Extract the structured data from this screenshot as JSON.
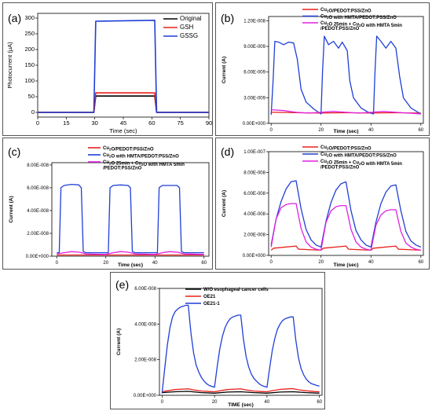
{
  "chart_data": [
    {
      "panel": "(a)",
      "type": "line",
      "xlabel": "Time (sec)",
      "ylabel": "Photocurrent (µA)",
      "xticks": [
        "0",
        "15",
        "30",
        "45",
        "60",
        "75",
        "90"
      ],
      "yticks": [
        "0",
        "50",
        "100",
        "150",
        "200",
        "250",
        "300"
      ],
      "xlim": [
        0,
        90
      ],
      "ylim": [
        -15,
        315
      ],
      "legend": "top-right",
      "series": [
        {
          "name": "Original",
          "color": "#000000",
          "x": [
            0,
            29.5,
            30.5,
            61.5,
            62.5,
            90
          ],
          "y": [
            0,
            0,
            52,
            52,
            0,
            0
          ]
        },
        {
          "name": "GSH",
          "color": "#e8201c",
          "x": [
            0,
            29.5,
            30.5,
            61.5,
            62.5,
            90
          ],
          "y": [
            0,
            0,
            62,
            62,
            0,
            0
          ]
        },
        {
          "name": "GSSG",
          "color": "#1f3fd6",
          "x": [
            0,
            29.5,
            30.5,
            61.5,
            62.5,
            90
          ],
          "y": [
            0,
            0,
            290,
            293,
            0,
            0
          ]
        }
      ]
    },
    {
      "panel": "(b)",
      "type": "line",
      "xlabel": "Time (sec)",
      "ylabel": "Current (A)",
      "xticks": [
        "0",
        "20",
        "40",
        "60"
      ],
      "yticks": [
        "0.00E+000",
        "3.00E-009",
        "6.00E-009",
        "9.00E-009",
        "1.20E-008"
      ],
      "xlim": [
        -1,
        61
      ],
      "ylim": [
        0,
        1.25e-08
      ],
      "legend": "top",
      "series": [
        {
          "name": "Cu₂O/PEDOT:PSS/ZnO",
          "color": "#e8201c",
          "x": [
            0,
            10,
            20,
            30,
            40,
            50,
            60
          ],
          "y": [
            1.3e-09,
            1.25e-09,
            1.2e-09,
            1.25e-09,
            1.2e-09,
            1.25e-09,
            1.2e-09
          ]
        },
        {
          "name": "Cu₂O with HMTA/PEDOT:PSS/ZnO",
          "color": "#1f3fd6",
          "x": [
            0,
            0.8,
            1.5,
            3,
            5,
            7,
            9,
            10.5,
            12,
            14,
            17,
            20,
            20.6,
            21.3,
            23,
            25,
            27,
            28.5,
            30.5,
            31.5,
            33,
            36,
            39,
            41,
            41.6,
            42.3,
            44,
            46,
            48,
            50,
            51.5,
            53,
            56,
            60
          ],
          "y": [
            1e-09,
            5e-09,
            9.6e-09,
            9.5e-09,
            9.2e-09,
            9.5e-09,
            9.4e-09,
            7.5e-09,
            4e-09,
            2.5e-09,
            1.7e-09,
            1.1e-09,
            6e-09,
            1.02e-08,
            9.2e-09,
            9.6e-09,
            8.8e-09,
            9.5e-09,
            8.5e-09,
            5e-09,
            3e-09,
            1.8e-09,
            1.3e-09,
            1.1e-09,
            6e-09,
            1.02e-08,
            9.6e-09,
            8.8e-09,
            9.6e-09,
            8.8e-09,
            5.5e-09,
            3e-09,
            1.8e-09,
            1.1e-09
          ]
        },
        {
          "name": "Cu₂O 25min + Cu₂O with HMTA 5min /PEDOT:PSS/ZnO",
          "color": "#e020e0",
          "x": [
            0,
            5,
            10,
            15,
            20,
            25,
            30,
            35,
            40,
            45,
            50,
            55,
            60
          ],
          "y": [
            1.6e-09,
            1.5e-09,
            1.3e-09,
            1.2e-09,
            1.3e-09,
            1.4e-09,
            1.3e-09,
            1.2e-09,
            1.3e-09,
            1.4e-09,
            1.3e-09,
            1.2e-09,
            1.1e-09
          ]
        }
      ]
    },
    {
      "panel": "(c)",
      "type": "line",
      "xlabel": "Time (sec)",
      "ylabel": "Current (A)",
      "xticks": [
        "0",
        "20",
        "40",
        "60"
      ],
      "yticks": [
        "0.00E+000",
        "2.00E-008",
        "4.00E-008",
        "6.00E-008",
        "8.00E-008"
      ],
      "xlim": [
        -2,
        62
      ],
      "ylim": [
        0,
        8.2e-08
      ],
      "legend": "top",
      "series": [
        {
          "name": "Cu₂O/PEDOT:PSS/ZnO",
          "color": "#e8201c",
          "x": [
            0,
            60
          ],
          "y": [
            1e-09,
            1e-09
          ]
        },
        {
          "name": "Cu₂O with HMTA/PEDOT:PSS/ZnO",
          "color": "#1f3fd6",
          "x": [
            0,
            1,
            1.7,
            3,
            6,
            9,
            10,
            10.8,
            12,
            20,
            21,
            21.7,
            23,
            26,
            29,
            30,
            30.8,
            32,
            40,
            41,
            41.7,
            43,
            46,
            49,
            50,
            50.8,
            52,
            60
          ],
          "y": [
            3e-09,
            3e-09,
            6e-08,
            6.2e-08,
            6.3e-08,
            6.25e-08,
            6e-08,
            4e-09,
            3e-09,
            3e-09,
            3e-09,
            6e-08,
            6.2e-08,
            6.25e-08,
            6.2e-08,
            6e-08,
            4e-09,
            3e-09,
            3e-09,
            3e-09,
            6e-08,
            6.2e-08,
            6.2e-08,
            6.2e-08,
            6e-08,
            4e-09,
            3e-09,
            3e-09
          ]
        },
        {
          "name": "Cu₂O 25min + Cu₂O with HMTA 5min /PEDOT:PSS/ZnO",
          "color": "#e020e0",
          "x": [
            0,
            3,
            6,
            9,
            12,
            20,
            23,
            26,
            29,
            32,
            40,
            43,
            46,
            49,
            52,
            60
          ],
          "y": [
            2e-09,
            3e-09,
            4e-09,
            3.5e-09,
            2e-09,
            1.5e-09,
            3e-09,
            4e-09,
            3.5e-09,
            2e-09,
            1.5e-09,
            3e-09,
            4e-09,
            3.5e-09,
            2e-09,
            1.5e-09
          ]
        }
      ]
    },
    {
      "panel": "(d)",
      "type": "line",
      "xlabel": "Time (sec)",
      "ylabel": "Current (A)",
      "xticks": [
        "0",
        "20",
        "40",
        "60"
      ],
      "yticks": [
        "0.00E+000",
        "2.00E-008",
        "4.00E-008",
        "6.00E-008",
        "8.00E-008",
        "1.00E-007"
      ],
      "xlim": [
        -1,
        61
      ],
      "ylim": [
        0,
        1e-07
      ],
      "legend": "top",
      "series": [
        {
          "name": "Cu₂O/PEDOT:PSS/ZnO",
          "color": "#e8201c",
          "x": [
            0,
            1,
            10,
            11,
            20,
            21,
            30,
            31,
            40,
            41,
            50,
            51,
            60
          ],
          "y": [
            5e-09,
            7e-09,
            9e-09,
            6e-09,
            5e-09,
            7e-09,
            9e-09,
            6e-09,
            5e-09,
            7e-09,
            9e-09,
            6e-09,
            5e-09
          ]
        },
        {
          "name": "Cu₂O with HMTA/PEDOT:PSS/ZnO",
          "color": "#1f3fd6",
          "x": [
            0,
            2,
            4,
            6,
            8,
            10,
            12,
            14,
            16,
            18,
            20,
            22,
            24,
            26,
            28,
            30,
            32,
            34,
            36,
            38,
            40,
            42,
            44,
            46,
            48,
            50,
            52,
            54,
            56,
            58,
            60
          ],
          "y": [
            1e-08,
            3.5e-08,
            5.2e-08,
            6.4e-08,
            7.1e-08,
            7.2e-08,
            4.5e-08,
            2.5e-08,
            1.5e-08,
            1e-08,
            8e-09,
            3.3e-08,
            5.1e-08,
            6.3e-08,
            6.9e-08,
            7.1e-08,
            4.3e-08,
            2.4e-08,
            1.5e-08,
            1e-08,
            8e-09,
            3.2e-08,
            5e-08,
            6.1e-08,
            6.7e-08,
            6.8e-08,
            4.3e-08,
            2.3e-08,
            1.4e-08,
            1e-08,
            8e-09
          ]
        },
        {
          "name": "Cu₂O 25min + Cu₂O with HMTA 5min /PEDOT:PSS/ZnO",
          "color": "#e020e0",
          "x": [
            0,
            2,
            4,
            6,
            8,
            10,
            12,
            14,
            16,
            18,
            20,
            22,
            24,
            26,
            28,
            30,
            32,
            34,
            36,
            38,
            40,
            42,
            44,
            46,
            48,
            50,
            52,
            54,
            56,
            58,
            60
          ],
          "y": [
            8e-09,
            3.5e-08,
            4.6e-08,
            4.9e-08,
            5e-08,
            5e-08,
            2.6e-08,
            1.3e-08,
            8e-09,
            6e-09,
            5e-09,
            3.2e-08,
            4.3e-08,
            4.7e-08,
            4.8e-08,
            4.8e-08,
            2.5e-08,
            1.3e-08,
            8e-09,
            6e-09,
            5e-09,
            2.9e-08,
            3.9e-08,
            4.3e-08,
            4.4e-08,
            4.4e-08,
            2.3e-08,
            1.2e-08,
            8e-09,
            6e-09,
            5e-09
          ]
        }
      ]
    },
    {
      "panel": "(e)",
      "type": "line",
      "xlabel": "TIME (sec)",
      "ylabel": "Current (A)",
      "xticks": [
        "0",
        "20",
        "40",
        "60"
      ],
      "yticks": [
        "0.00E+000",
        "2.00E-008",
        "4.00E-008",
        "6.00E-008"
      ],
      "xlim": [
        -1,
        61
      ],
      "ylim": [
        0,
        6e-08
      ],
      "legend": "top-left",
      "series": [
        {
          "name": "W/O esophageal cancer cells",
          "color": "#000000",
          "x": [
            0,
            5,
            10,
            15,
            20,
            25,
            30,
            35,
            40,
            45,
            50,
            55,
            60
          ],
          "y": [
            1.5e-09,
            2e-09,
            2.2e-09,
            1.5e-09,
            1.2e-09,
            1.8e-09,
            2e-09,
            1.5e-09,
            1.2e-09,
            1.8e-09,
            2e-09,
            1.5e-09,
            1.2e-09
          ]
        },
        {
          "name": "OE21",
          "color": "#e8201c",
          "x": [
            0,
            2,
            5,
            8,
            10,
            12,
            15,
            18,
            20,
            22,
            25,
            28,
            30,
            32,
            35,
            38,
            40,
            42,
            45,
            48,
            50,
            52,
            55,
            58,
            60
          ],
          "y": [
            2e-09,
            2.5e-09,
            3.2e-09,
            3.5e-09,
            3.6e-09,
            3e-09,
            2.4e-09,
            2.1e-09,
            2e-09,
            2.5e-09,
            3.2e-09,
            3.5e-09,
            3.6e-09,
            3e-09,
            2.4e-09,
            2.1e-09,
            2e-09,
            2.6e-09,
            3.3e-09,
            3.6e-09,
            3.7e-09,
            3.1e-09,
            2.5e-09,
            2.1e-09,
            2e-09
          ]
        },
        {
          "name": "OE21-1",
          "color": "#1f3fd6",
          "x": [
            0,
            1,
            2,
            3,
            4,
            5,
            6,
            7,
            8,
            9,
            10,
            11,
            12,
            13,
            14,
            15,
            16,
            17,
            18,
            19,
            20,
            21,
            22,
            23,
            24,
            25,
            26,
            27,
            28,
            29,
            30,
            31,
            32,
            33,
            34,
            35,
            36,
            37,
            38,
            39,
            40,
            41,
            42,
            43,
            44,
            45,
            46,
            47,
            48,
            49,
            50,
            51,
            52,
            53,
            54,
            55,
            56,
            57,
            58,
            59,
            60
          ],
          "y": [
            1e-09,
            1.5e-08,
            2.8e-08,
            3.8e-08,
            4.4e-08,
            4.7e-08,
            4.85e-08,
            4.95e-08,
            5e-08,
            5.05e-08,
            5.05e-08,
            3.5e-08,
            2.4e-08,
            1.7e-08,
            1.3e-08,
            1e-08,
            8e-09,
            6.5e-09,
            5.5e-09,
            5e-09,
            4.5e-09,
            1.6e-08,
            2.6e-08,
            3.3e-08,
            3.8e-08,
            4.1e-08,
            4.3e-08,
            4.4e-08,
            4.45e-08,
            4.5e-08,
            4.5e-08,
            3.2e-08,
            2.2e-08,
            1.6e-08,
            1.2e-08,
            9.5e-09,
            8e-09,
            6.5e-09,
            5.5e-09,
            5e-09,
            4.5e-09,
            1.5e-08,
            2.5e-08,
            3.2e-08,
            3.7e-08,
            4e-08,
            4.2e-08,
            4.3e-08,
            4.35e-08,
            4.4e-08,
            4.4e-08,
            3.1e-08,
            2.1e-08,
            1.5e-08,
            1.15e-08,
            9e-09,
            7.5e-09,
            6.5e-09,
            6e-09,
            5.5e-09,
            5.2e-09
          ]
        }
      ]
    }
  ]
}
